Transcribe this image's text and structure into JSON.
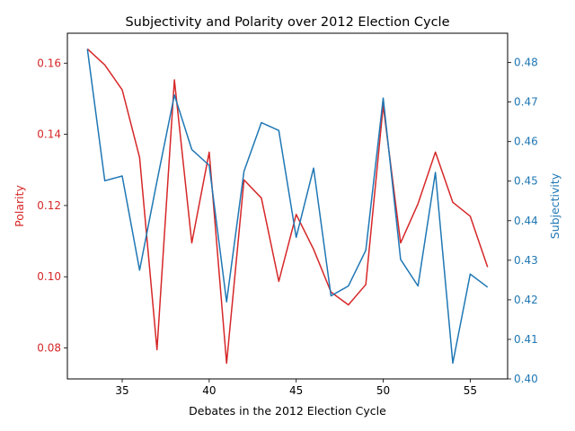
{
  "chart_data": {
    "type": "line",
    "title": "Subjectivity and Polarity over 2012 Election Cycle",
    "xlabel": "Debates in the 2012 Election Cycle",
    "x": [
      33,
      34,
      35,
      36,
      37,
      38,
      39,
      40,
      41,
      42,
      43,
      44,
      45,
      46,
      47,
      48,
      49,
      50,
      51,
      52,
      53,
      54,
      55,
      56
    ],
    "xlim": [
      31.85,
      57.15
    ],
    "xticks": [
      35,
      40,
      45,
      50,
      55
    ],
    "series": [
      {
        "name": "Polarity",
        "axis": "left",
        "color": "#d62728",
        "values": [
          0.164,
          0.1595,
          0.1525,
          0.1335,
          0.0795,
          0.1553,
          0.1095,
          0.135,
          0.0757,
          0.1272,
          0.1221,
          0.0987,
          0.1175,
          0.1077,
          0.0957,
          0.0921,
          0.0978,
          0.1481,
          0.1095,
          0.1205,
          0.135,
          0.1209,
          0.117,
          0.1027
        ]
      },
      {
        "name": "Subjectivity",
        "axis": "right",
        "color": "#1f77b4",
        "values": [
          0.4834,
          0.4501,
          0.4513,
          0.4275,
          0.45,
          0.4718,
          0.458,
          0.454,
          0.4195,
          0.4525,
          0.4648,
          0.4628,
          0.4358,
          0.4533,
          0.421,
          0.4235,
          0.4325,
          0.471,
          0.4302,
          0.4235,
          0.4522,
          0.404,
          0.4265,
          0.4232
        ]
      }
    ],
    "y_left": {
      "label": "Polarity",
      "color": "#d62728",
      "ylim": [
        0.0713,
        0.1684
      ],
      "ticks": [
        "0.08",
        "0.10",
        "0.12",
        "0.14",
        "0.16"
      ]
    },
    "y_right": {
      "label": "Subjectivity",
      "color": "#1f77b4",
      "ylim": [
        0.4,
        0.4874
      ],
      "ticks": [
        "0.40",
        "0.41",
        "0.42",
        "0.43",
        "0.44",
        "0.45",
        "0.46",
        "0.47",
        "0.48"
      ]
    },
    "grid": false,
    "legend": "none"
  }
}
